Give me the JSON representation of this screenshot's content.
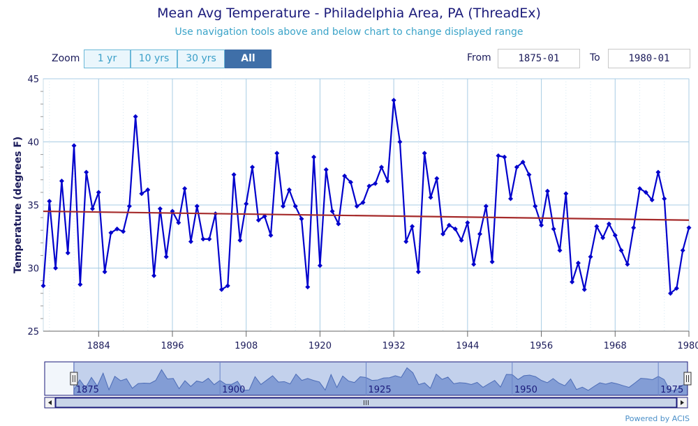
{
  "header": {
    "title": "Mean Avg Temperature - Philadelphia Area, PA (ThreadEx)",
    "subtitle": "Use navigation tools above and below chart to change displayed range"
  },
  "zoom": {
    "label": "Zoom",
    "buttons": [
      "1 yr",
      "10 yrs",
      "30 yrs",
      "All"
    ],
    "active": "All"
  },
  "range": {
    "from_label": "From",
    "from_value": "1875-01",
    "to_label": "To",
    "to_value": "1980-01"
  },
  "footer": {
    "powered_by": "Powered by ACIS"
  },
  "chart_data": {
    "type": "line",
    "ylabel": "Temperature (degrees F)",
    "ylim": [
      25,
      45
    ],
    "yticks": [
      25,
      30,
      35,
      40,
      45
    ],
    "xlim": [
      1875,
      1980
    ],
    "xticks": [
      1884,
      1896,
      1908,
      1920,
      1932,
      1944,
      1956,
      1968,
      1980
    ],
    "grid": true,
    "series": [
      {
        "color": "#0000cc",
        "x": [
          1875,
          1876,
          1877,
          1878,
          1879,
          1880,
          1881,
          1882,
          1883,
          1884,
          1885,
          1886,
          1887,
          1888,
          1889,
          1890,
          1891,
          1892,
          1893,
          1894,
          1895,
          1896,
          1897,
          1898,
          1899,
          1900,
          1901,
          1902,
          1903,
          1904,
          1905,
          1906,
          1907,
          1908,
          1909,
          1910,
          1911,
          1912,
          1913,
          1914,
          1915,
          1916,
          1917,
          1918,
          1919,
          1920,
          1921,
          1922,
          1923,
          1924,
          1925,
          1926,
          1927,
          1928,
          1929,
          1930,
          1931,
          1932,
          1933,
          1934,
          1935,
          1936,
          1937,
          1938,
          1939,
          1940,
          1941,
          1942,
          1943,
          1944,
          1945,
          1946,
          1947,
          1948,
          1949,
          1950,
          1951,
          1952,
          1953,
          1954,
          1955,
          1956,
          1957,
          1958,
          1959,
          1960,
          1961,
          1962,
          1963,
          1964,
          1965,
          1966,
          1967,
          1968,
          1969,
          1970,
          1971,
          1972,
          1973,
          1974,
          1975,
          1976,
          1977,
          1978,
          1979,
          1980
        ],
        "values": [
          28.6,
          35.3,
          30.0,
          36.9,
          31.2,
          39.7,
          28.7,
          37.6,
          34.7,
          36.0,
          29.7,
          32.8,
          33.1,
          32.9,
          34.9,
          42.0,
          35.9,
          36.2,
          29.4,
          34.7,
          30.9,
          34.5,
          33.6,
          36.3,
          32.1,
          34.9,
          32.3,
          32.3,
          34.3,
          28.3,
          28.6,
          37.4,
          32.2,
          35.1,
          38.0,
          33.8,
          34.1,
          32.6,
          39.1,
          34.9,
          36.2,
          34.9,
          33.9,
          28.5,
          38.8,
          30.2,
          37.8,
          34.5,
          33.5,
          37.3,
          36.8,
          34.9,
          35.2,
          36.5,
          36.7,
          38.0,
          36.9,
          43.3,
          40.0,
          32.1,
          33.3,
          29.7,
          39.1,
          35.6,
          37.1,
          32.7,
          33.4,
          33.1,
          32.2,
          33.6,
          30.3,
          32.7,
          34.9,
          30.5,
          38.9,
          38.8,
          35.5,
          38.0,
          38.4,
          37.4,
          34.9,
          33.4,
          36.1,
          33.1,
          31.4,
          35.9,
          28.9,
          30.4,
          28.3,
          30.9,
          33.3,
          32.4,
          33.5,
          32.6,
          31.4,
          30.3,
          33.2,
          36.3,
          36.0,
          35.4,
          37.6,
          35.5,
          28.0,
          28.4,
          31.4,
          33.2
        ]
      },
      {
        "color": "#a52a2a",
        "x": [
          1875,
          1980
        ],
        "values": [
          34.5,
          33.8
        ]
      }
    ]
  },
  "navigator": {
    "xlim": [
      1870,
      1980
    ],
    "tick_labels": [
      "1875",
      "1900",
      "1925",
      "1950",
      "1975"
    ],
    "tick_years": [
      1875,
      1900,
      1925,
      1950,
      1975
    ]
  }
}
